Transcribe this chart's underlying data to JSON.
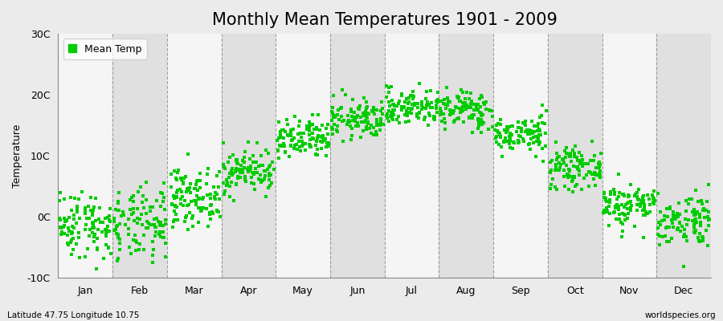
{
  "title": "Monthly Mean Temperatures 1901 - 2009",
  "ylabel": "Temperature",
  "xlabel_labels": [
    "Jan",
    "Feb",
    "Mar",
    "Apr",
    "May",
    "Jun",
    "Jul",
    "Aug",
    "Sep",
    "Oct",
    "Nov",
    "Dec"
  ],
  "bottom_left": "Latitude 47.75 Longitude 10.75",
  "bottom_right": "worldspecies.org",
  "ylim": [
    -10,
    30
  ],
  "yticks": [
    -10,
    0,
    10,
    20,
    30
  ],
  "ytick_labels": [
    "-10C",
    "0C",
    "10C",
    "20C",
    "30C"
  ],
  "dot_color": "#00CC00",
  "bg_color": "#EBEBEB",
  "band_color_light": "#F5F5F5",
  "band_color_dark": "#E0E0E0",
  "legend_label": "Mean Temp",
  "n_years": 109,
  "monthly_means": [
    -1.2,
    -1.5,
    3.2,
    7.5,
    12.5,
    16.0,
    18.0,
    17.5,
    13.5,
    8.0,
    2.0,
    -0.5
  ],
  "monthly_stds": [
    2.8,
    3.0,
    2.3,
    1.8,
    1.7,
    1.6,
    1.5,
    1.6,
    1.5,
    1.6,
    1.8,
    2.2
  ],
  "title_fontsize": 15,
  "tick_fontsize": 9,
  "label_fontsize": 9
}
